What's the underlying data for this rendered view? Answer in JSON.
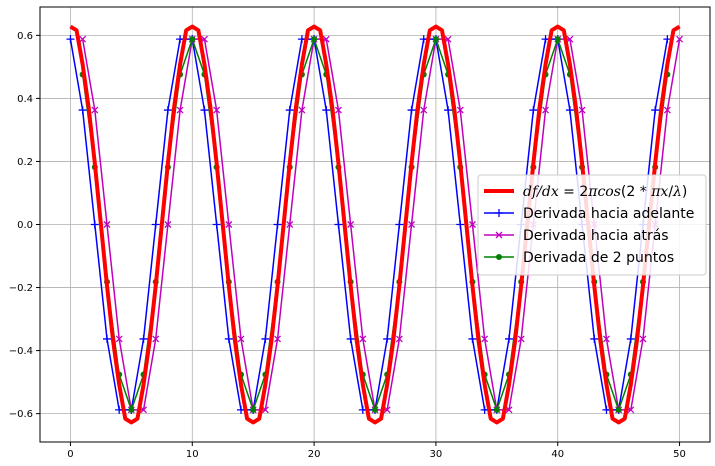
{
  "chart_data": {
    "type": "line",
    "title": "",
    "xlabel": "",
    "ylabel": "",
    "xlim": [
      -2.5,
      52.5
    ],
    "ylim": [
      -0.69,
      0.69
    ],
    "xticks": [
      0,
      10,
      20,
      30,
      40,
      50
    ],
    "yticks": [
      -0.6,
      -0.4,
      -0.2,
      0.0,
      0.2,
      0.4,
      0.6
    ],
    "xtick_labels": [
      "0",
      "10",
      "20",
      "30",
      "40",
      "50"
    ],
    "ytick_labels": [
      "−0.6",
      "−0.4",
      "−0.2",
      "0.0",
      "0.2",
      "0.4",
      "0.6"
    ],
    "grid": true,
    "legend_position": "center-right",
    "x_samples": [
      0,
      1,
      2,
      3,
      4,
      5,
      6,
      7,
      8,
      9,
      10,
      11,
      12,
      13,
      14,
      15,
      16,
      17,
      18,
      19,
      20,
      21,
      22,
      23,
      24,
      25,
      26,
      27,
      28,
      29,
      30,
      31,
      32,
      33,
      34,
      35,
      36,
      37,
      38,
      39,
      40,
      41,
      42,
      43,
      44,
      45,
      46,
      47,
      48,
      49,
      50
    ],
    "series": [
      {
        "name": "df/dx = 2πcos(2 * πx/λ)",
        "color": "#ff0000",
        "style": "thick-line",
        "x": [
          0,
          0.5,
          1,
          1.5,
          2,
          2.5,
          3,
          3.5,
          4,
          4.5,
          5,
          5.5,
          6,
          6.5,
          7,
          7.5,
          8,
          8.5,
          9,
          9.5,
          10,
          10.5,
          11,
          11.5,
          12,
          12.5,
          13,
          13.5,
          14,
          14.5,
          15,
          15.5,
          16,
          16.5,
          17,
          17.5,
          18,
          18.5,
          19,
          19.5,
          20,
          20.5,
          21,
          21.5,
          22,
          22.5,
          23,
          23.5,
          24,
          24.5,
          25,
          25.5,
          26,
          26.5,
          27,
          27.5,
          28,
          28.5,
          29,
          29.5,
          30,
          30.5,
          31,
          31.5,
          32,
          32.5,
          33,
          33.5,
          34,
          34.5,
          35,
          35.5,
          36,
          36.5,
          37,
          37.5,
          38,
          38.5,
          39,
          39.5,
          40,
          40.5,
          41,
          41.5,
          42,
          42.5,
          43,
          43.5,
          44,
          44.5,
          45,
          45.5,
          46,
          46.5,
          47,
          47.5,
          48,
          48.5,
          49,
          49.5,
          50
        ],
        "values": [
          0.628,
          0.616,
          0.508,
          0.369,
          0.194,
          0,
          -0.194,
          -0.369,
          -0.508,
          -0.616,
          -0.628,
          -0.616,
          -0.508,
          -0.369,
          -0.194,
          0,
          0.194,
          0.369,
          0.508,
          0.616,
          0.628,
          0.616,
          0.508,
          0.369,
          0.194,
          0,
          -0.194,
          -0.369,
          -0.508,
          -0.616,
          -0.628,
          -0.616,
          -0.508,
          -0.369,
          -0.194,
          0,
          0.194,
          0.369,
          0.508,
          0.616,
          0.628,
          0.616,
          0.508,
          0.369,
          0.194,
          0,
          -0.194,
          -0.369,
          -0.508,
          -0.616,
          -0.628,
          -0.616,
          -0.508,
          -0.369,
          -0.194,
          0,
          0.194,
          0.369,
          0.508,
          0.616,
          0.628,
          0.616,
          0.508,
          0.369,
          0.194,
          0,
          -0.194,
          -0.369,
          -0.508,
          -0.616,
          -0.628,
          -0.616,
          -0.508,
          -0.369,
          -0.194,
          0,
          0.194,
          0.369,
          0.508,
          0.616,
          0.628,
          0.616,
          0.508,
          0.369,
          0.194,
          0,
          -0.194,
          -0.369,
          -0.508,
          -0.616,
          -0.628,
          -0.616,
          -0.508,
          -0.369,
          -0.194,
          0,
          0.194,
          0.369,
          0.508,
          0.616,
          0.628
        ]
      },
      {
        "name": "Derivada hacia adelante",
        "color": "#0000ff",
        "marker": "plus",
        "x": [
          0,
          1,
          2,
          3,
          4,
          5,
          6,
          7,
          8,
          9,
          10,
          11,
          12,
          13,
          14,
          15,
          16,
          17,
          18,
          19,
          20,
          21,
          22,
          23,
          24,
          25,
          26,
          27,
          28,
          29,
          30,
          31,
          32,
          33,
          34,
          35,
          36,
          37,
          38,
          39,
          40,
          41,
          42,
          43,
          44,
          45,
          46,
          47,
          48,
          49
        ],
        "values": [
          0.588,
          0.363,
          0,
          -0.363,
          -0.588,
          -0.588,
          -0.363,
          0,
          0.363,
          0.588,
          0.588,
          0.363,
          0,
          -0.363,
          -0.588,
          -0.588,
          -0.363,
          0,
          0.363,
          0.588,
          0.588,
          0.363,
          0,
          -0.363,
          -0.588,
          -0.588,
          -0.363,
          0,
          0.363,
          0.588,
          0.588,
          0.363,
          0,
          -0.363,
          -0.588,
          -0.588,
          -0.363,
          0,
          0.363,
          0.588,
          0.588,
          0.363,
          0,
          -0.363,
          -0.588,
          -0.588,
          -0.363,
          0,
          0.363,
          0.588
        ]
      },
      {
        "name": "Derivada hacia atrás",
        "color": "#bf00bf",
        "marker": "x",
        "x": [
          1,
          2,
          3,
          4,
          5,
          6,
          7,
          8,
          9,
          10,
          11,
          12,
          13,
          14,
          15,
          16,
          17,
          18,
          19,
          20,
          21,
          22,
          23,
          24,
          25,
          26,
          27,
          28,
          29,
          30,
          31,
          32,
          33,
          34,
          35,
          36,
          37,
          38,
          39,
          40,
          41,
          42,
          43,
          44,
          45,
          46,
          47,
          48,
          49,
          50
        ],
        "values": [
          0.588,
          0.363,
          0,
          -0.363,
          -0.588,
          -0.588,
          -0.363,
          0,
          0.363,
          0.588,
          0.588,
          0.363,
          0,
          -0.363,
          -0.588,
          -0.588,
          -0.363,
          0,
          0.363,
          0.588,
          0.588,
          0.363,
          0,
          -0.363,
          -0.588,
          -0.588,
          -0.363,
          0,
          0.363,
          0.588,
          0.588,
          0.363,
          0,
          -0.363,
          -0.588,
          -0.588,
          -0.363,
          0,
          0.363,
          0.588,
          0.588,
          0.363,
          0,
          -0.363,
          -0.588,
          -0.588,
          -0.363,
          0,
          0.363,
          0.588
        ]
      },
      {
        "name": "Derivada de 2 puntos",
        "color": "#008000",
        "marker": "circle",
        "x": [
          1,
          2,
          3,
          4,
          5,
          6,
          7,
          8,
          9,
          10,
          11,
          12,
          13,
          14,
          15,
          16,
          17,
          18,
          19,
          20,
          21,
          22,
          23,
          24,
          25,
          26,
          27,
          28,
          29,
          30,
          31,
          32,
          33,
          34,
          35,
          36,
          37,
          38,
          39,
          40,
          41,
          42,
          43,
          44,
          45,
          46,
          47,
          48,
          49
        ],
        "values": [
          0.476,
          0.182,
          -0.182,
          -0.476,
          -0.588,
          -0.476,
          -0.182,
          0.182,
          0.476,
          0.588,
          0.476,
          0.182,
          -0.182,
          -0.476,
          -0.588,
          -0.476,
          -0.182,
          0.182,
          0.476,
          0.588,
          0.476,
          0.182,
          -0.182,
          -0.476,
          -0.588,
          -0.476,
          -0.182,
          0.182,
          0.476,
          0.588,
          0.476,
          0.182,
          -0.182,
          -0.476,
          -0.588,
          -0.476,
          -0.182,
          0.182,
          0.476,
          0.588,
          0.476,
          0.182,
          -0.182,
          -0.476,
          -0.588,
          -0.476,
          -0.182,
          0.182,
          0.476
        ]
      }
    ],
    "legend": {
      "entries": [
        {
          "label_math_a": "df/dx",
          "label_eq": " = 2",
          "label_math_b": "πcos",
          "label_rest": "(2 * ",
          "label_math_c": "πx",
          "label_slash": "/",
          "label_math_d": "λ",
          "label_close": ")"
        },
        {
          "label": "Derivada hacia adelante"
        },
        {
          "label": "Derivada hacia atrás"
        },
        {
          "label": "Derivada de 2 puntos"
        }
      ]
    }
  }
}
